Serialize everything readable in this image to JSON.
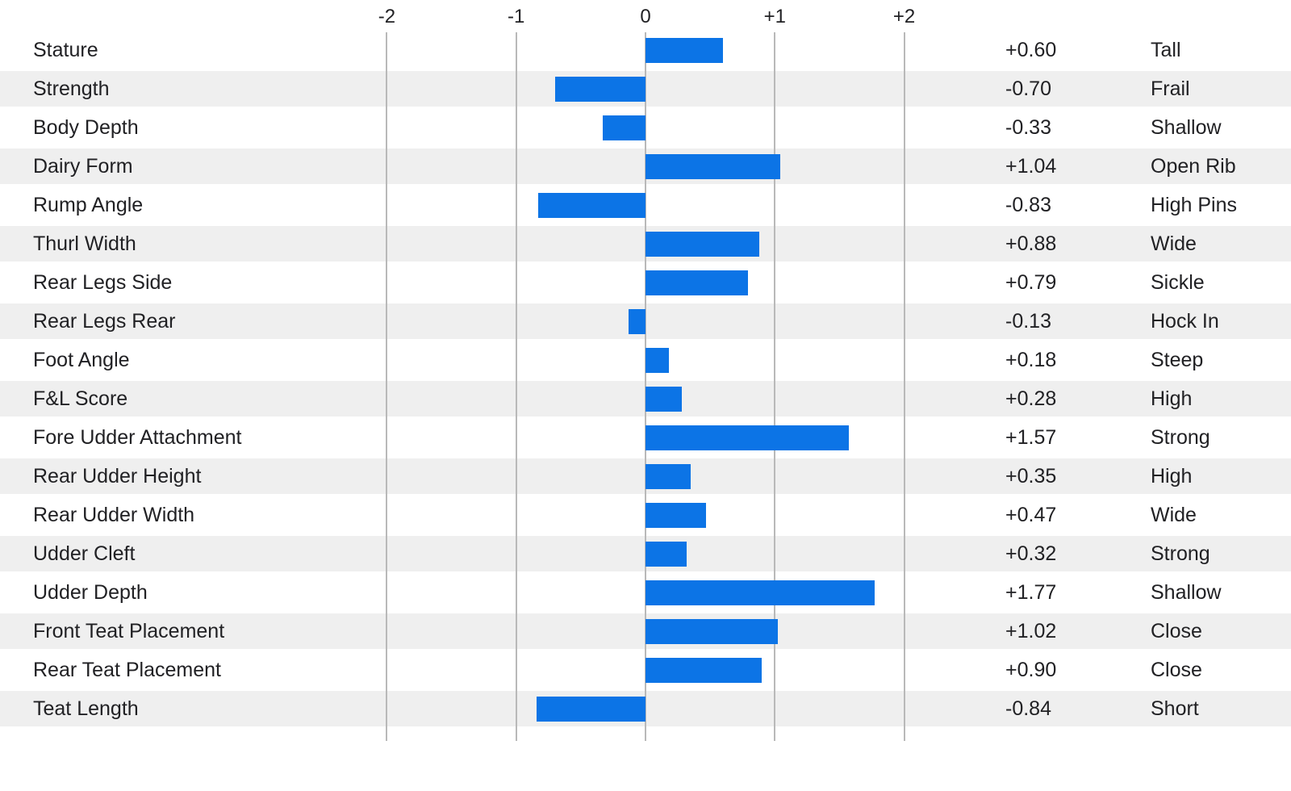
{
  "colors": {
    "bar": "#0c74e6",
    "row_stripe": "#efefef",
    "gridline": "#b9b9b9",
    "text": "#212124"
  },
  "chart_data": {
    "type": "bar",
    "orientation": "horizontal",
    "title": "",
    "xlabel": "",
    "ylabel": "",
    "axis": {
      "range": [
        -2,
        2
      ],
      "grid": true,
      "tick_position": "top",
      "ticks": [
        {
          "label": "-2",
          "value": -2
        },
        {
          "label": "-1",
          "value": -1
        },
        {
          "label": "0",
          "value": 0
        },
        {
          "label": "+1",
          "value": 1
        },
        {
          "label": "+2",
          "value": 2
        }
      ]
    },
    "rows": [
      {
        "trait": "Stature",
        "value": 0.6,
        "value_label": "+0.60",
        "descriptor": "Tall"
      },
      {
        "trait": "Strength",
        "value": -0.7,
        "value_label": "-0.70",
        "descriptor": "Frail"
      },
      {
        "trait": "Body Depth",
        "value": -0.33,
        "value_label": "-0.33",
        "descriptor": "Shallow"
      },
      {
        "trait": "Dairy Form",
        "value": 1.04,
        "value_label": "+1.04",
        "descriptor": "Open Rib"
      },
      {
        "trait": "Rump Angle",
        "value": -0.83,
        "value_label": "-0.83",
        "descriptor": "High Pins"
      },
      {
        "trait": "Thurl Width",
        "value": 0.88,
        "value_label": "+0.88",
        "descriptor": "Wide"
      },
      {
        "trait": "Rear Legs Side",
        "value": 0.79,
        "value_label": "+0.79",
        "descriptor": "Sickle"
      },
      {
        "trait": "Rear Legs Rear",
        "value": -0.13,
        "value_label": "-0.13",
        "descriptor": "Hock In"
      },
      {
        "trait": "Foot Angle",
        "value": 0.18,
        "value_label": "+0.18",
        "descriptor": "Steep"
      },
      {
        "trait": "F&L Score",
        "value": 0.28,
        "value_label": "+0.28",
        "descriptor": "High"
      },
      {
        "trait": "Fore Udder Attachment",
        "value": 1.57,
        "value_label": "+1.57",
        "descriptor": "Strong"
      },
      {
        "trait": "Rear Udder Height",
        "value": 0.35,
        "value_label": "+0.35",
        "descriptor": "High"
      },
      {
        "trait": "Rear Udder Width",
        "value": 0.47,
        "value_label": "+0.47",
        "descriptor": "Wide"
      },
      {
        "trait": "Udder Cleft",
        "value": 0.32,
        "value_label": "+0.32",
        "descriptor": "Strong"
      },
      {
        "trait": "Udder Depth",
        "value": 1.77,
        "value_label": "+1.77",
        "descriptor": "Shallow"
      },
      {
        "trait": "Front Teat Placement",
        "value": 1.02,
        "value_label": "+1.02",
        "descriptor": "Close"
      },
      {
        "trait": "Rear Teat Placement",
        "value": 0.9,
        "value_label": "+0.90",
        "descriptor": "Close"
      },
      {
        "trait": "Teat Length",
        "value": -0.84,
        "value_label": "-0.84",
        "descriptor": "Short"
      }
    ]
  }
}
